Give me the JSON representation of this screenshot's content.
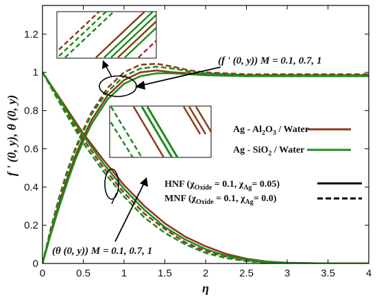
{
  "chart_data": {
    "type": "line",
    "xlabel": "η",
    "ylabel": "f ' (0, y),  θ (0, y)",
    "xlim": [
      0,
      4
    ],
    "ylim": [
      0,
      1.35
    ],
    "xticks": [
      "0",
      "0.5",
      "1",
      "1.5",
      "2",
      "2.5",
      "3",
      "3.5",
      "4"
    ],
    "yticks": [
      "0",
      "0.2",
      "0.4",
      "0.6",
      "0.8",
      "1",
      "1.2"
    ],
    "grid": false,
    "colors": {
      "al2o3": "#8b3a1a",
      "sio2": "#1e8a1e",
      "black": "#000000"
    },
    "series": [
      {
        "name": "Ag - Al2O3 / Water",
        "color": "#8b3a1a",
        "quantity": "f'",
        "dash": "solid",
        "M": 0.1,
        "x": [
          0,
          0.1,
          0.2,
          0.3,
          0.4,
          0.5,
          0.6,
          0.8,
          1,
          1.2,
          1.4,
          1.6,
          1.8,
          2,
          2.5,
          3,
          3.5,
          4
        ],
        "y": [
          0,
          0.16,
          0.31,
          0.44,
          0.56,
          0.66,
          0.75,
          0.88,
          0.96,
          1.0,
          1.01,
          1.0,
          0.995,
          0.99,
          0.985,
          0.985,
          0.985,
          0.985
        ]
      },
      {
        "name": "Ag - Al2O3 / Water",
        "color": "#8b3a1a",
        "quantity": "f'",
        "dash": "dashed",
        "M": 1,
        "x": [
          0,
          0.1,
          0.2,
          0.3,
          0.4,
          0.5,
          0.6,
          0.8,
          1,
          1.2,
          1.4,
          1.6,
          1.8,
          2,
          2.5,
          3,
          3.5,
          4
        ],
        "y": [
          0,
          0.18,
          0.34,
          0.48,
          0.6,
          0.7,
          0.79,
          0.92,
          1.0,
          1.04,
          1.045,
          1.03,
          1.01,
          1.0,
          0.99,
          0.99,
          0.99,
          0.99
        ]
      },
      {
        "name": "Ag - SiO2 / Water",
        "color": "#1e8a1e",
        "quantity": "f'",
        "dash": "solid",
        "M": 0.1,
        "x": [
          0,
          0.1,
          0.2,
          0.3,
          0.4,
          0.5,
          0.6,
          0.8,
          1,
          1.2,
          1.4,
          1.6,
          1.8,
          2,
          2.5,
          3,
          3.5,
          4
        ],
        "y": [
          0,
          0.15,
          0.29,
          0.42,
          0.54,
          0.64,
          0.73,
          0.86,
          0.94,
          0.98,
          0.995,
          0.995,
          0.99,
          0.985,
          0.98,
          0.98,
          0.98,
          0.98
        ]
      },
      {
        "name": "Ag - SiO2 / Water",
        "color": "#1e8a1e",
        "quantity": "f'",
        "dash": "dashed",
        "M": 1,
        "x": [
          0,
          0.1,
          0.2,
          0.3,
          0.4,
          0.5,
          0.6,
          0.8,
          1,
          1.2,
          1.4,
          1.6,
          1.8,
          2,
          2.5,
          3,
          3.5,
          4
        ],
        "y": [
          0,
          0.17,
          0.33,
          0.47,
          0.59,
          0.69,
          0.78,
          0.9,
          0.98,
          1.02,
          1.03,
          1.02,
          1.005,
          0.995,
          0.985,
          0.985,
          0.985,
          0.985
        ]
      },
      {
        "name": "Ag - Al2O3 / Water",
        "color": "#8b3a1a",
        "quantity": "theta",
        "dash": "solid",
        "M": 0.1,
        "x": [
          0,
          0.25,
          0.5,
          0.75,
          1,
          1.25,
          1.5,
          1.75,
          2,
          2.25,
          2.5,
          2.75,
          3,
          3.5,
          4
        ],
        "y": [
          1,
          0.84,
          0.68,
          0.54,
          0.41,
          0.3,
          0.21,
          0.14,
          0.09,
          0.05,
          0.025,
          0.01,
          0.004,
          0,
          0
        ]
      },
      {
        "name": "Ag - Al2O3 / Water",
        "color": "#8b3a1a",
        "quantity": "theta",
        "dash": "dashed",
        "M": 1,
        "x": [
          0,
          0.25,
          0.5,
          0.75,
          1,
          1.25,
          1.5,
          1.75,
          2,
          2.25,
          2.5,
          2.75,
          3,
          3.5,
          4
        ],
        "y": [
          1,
          0.82,
          0.65,
          0.5,
          0.37,
          0.26,
          0.18,
          0.11,
          0.065,
          0.035,
          0.015,
          0.005,
          0.002,
          0,
          0
        ]
      },
      {
        "name": "Ag - SiO2 / Water",
        "color": "#1e8a1e",
        "quantity": "theta",
        "dash": "solid",
        "M": 0.1,
        "x": [
          0,
          0.25,
          0.5,
          0.75,
          1,
          1.25,
          1.5,
          1.75,
          2,
          2.25,
          2.5,
          2.75,
          3,
          3.5,
          4
        ],
        "y": [
          1,
          0.83,
          0.67,
          0.52,
          0.39,
          0.28,
          0.19,
          0.125,
          0.075,
          0.04,
          0.02,
          0.008,
          0.003,
          0,
          0
        ]
      },
      {
        "name": "Ag - SiO2 / Water",
        "color": "#1e8a1e",
        "quantity": "theta",
        "dash": "dashed",
        "M": 1,
        "x": [
          0,
          0.25,
          0.5,
          0.75,
          1,
          1.25,
          1.5,
          1.75,
          2,
          2.25,
          2.5,
          2.75,
          3,
          3.5,
          4
        ],
        "y": [
          1,
          0.81,
          0.63,
          0.48,
          0.35,
          0.24,
          0.16,
          0.1,
          0.055,
          0.028,
          0.012,
          0.004,
          0.001,
          0,
          0
        ]
      }
    ],
    "annotations": {
      "f_label": "(f ' (0, y)) M = 0.1, 0.7, 1",
      "theta_label": "(θ (0, y)) M = 0.1, 0.7, 1"
    },
    "legend": {
      "placement": "right",
      "entries": [
        {
          "prefix": "Ag - Al",
          "sub1": "2",
          "mid": "O",
          "sub2": "3",
          "suffix": " / Water",
          "color": "#8b3a1a",
          "style": "solid"
        },
        {
          "prefix": "Ag - SiO",
          "sub1": "2",
          "mid": "",
          "sub2": "",
          "suffix": " / Water",
          "color": "#1e8a1e",
          "style": "solid"
        },
        {
          "prefix": "HNF (χ",
          "sub1": "Oxide",
          "mid": " = 0.1, χ",
          "sub2": "Ag",
          "suffix": "= 0.05)",
          "color": "#000000",
          "style": "solid"
        },
        {
          "prefix": "MNF (χ",
          "sub1": "Oxide",
          "mid": " = 0.1, χ",
          "sub2": "Ag",
          "suffix": "= 0.0)",
          "color": "#000000",
          "style": "dashed"
        }
      ]
    }
  }
}
